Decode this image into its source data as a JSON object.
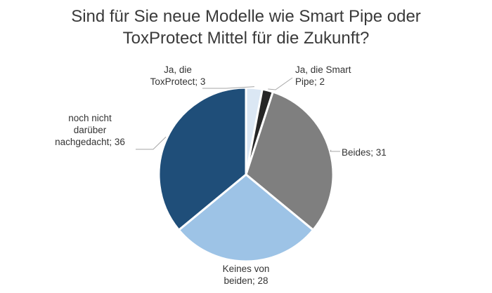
{
  "chart_data": {
    "type": "pie",
    "title_lines": [
      "Sind für Sie neue Modelle wie Smart Pipe oder",
      "ToxProtect Mittel für die Zukunft?"
    ],
    "slices": [
      {
        "label": "Ja, die ToxProtect",
        "value": 3,
        "color": "#dbe7f4",
        "display": "Ja, die\nToxProtect; 3"
      },
      {
        "label": "Ja, die Smart Pipe",
        "value": 2,
        "color": "#262626",
        "display": "Ja, die Smart\nPipe; 2"
      },
      {
        "label": "Beides",
        "value": 31,
        "color": "#7f7f7f",
        "display": "Beides; 31"
      },
      {
        "label": "Keines von beiden",
        "value": 28,
        "color": "#9dc3e6",
        "display": "Keines von\nbeiden; 28"
      },
      {
        "label": "noch nicht darüber nachgedacht",
        "value": 36,
        "color": "#1f4e79",
        "display": "noch nicht\ndarüber\nnachgedacht; 36"
      }
    ],
    "start_angle_deg": 0,
    "direction": "clockwise"
  }
}
